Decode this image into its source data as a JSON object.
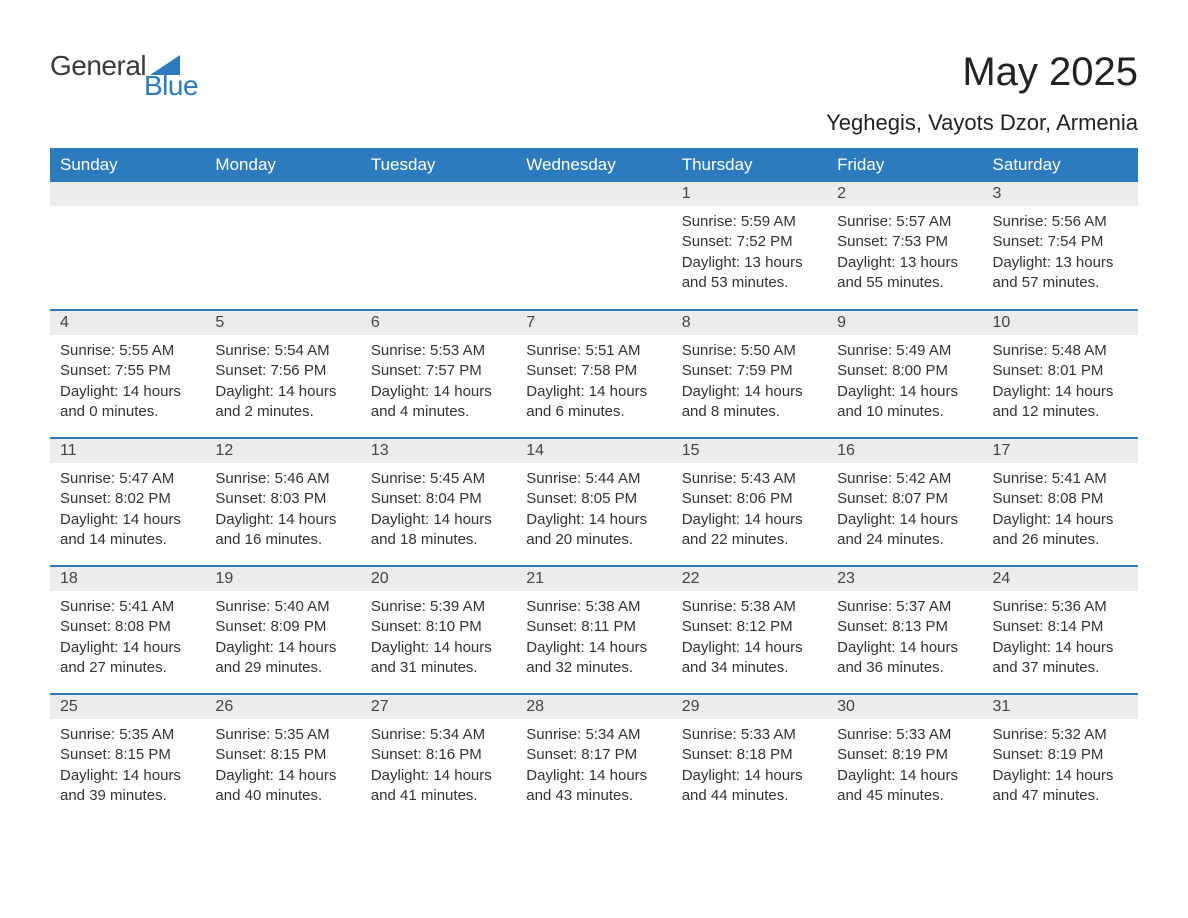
{
  "logo": {
    "text1": "General",
    "text2": "Blue"
  },
  "title": "May 2025",
  "location": "Yeghegis, Vayots Dzor, Armenia",
  "colors": {
    "header_bg": "#2d7bbf",
    "header_text": "#ffffff",
    "daynum_bg": "#ececec",
    "separator": "#2d7bbf",
    "body_text": "#333333",
    "logo_blue": "#2d7bbf",
    "logo_gray": "#3a3a3a"
  },
  "day_headers": [
    "Sunday",
    "Monday",
    "Tuesday",
    "Wednesday",
    "Thursday",
    "Friday",
    "Saturday"
  ],
  "weeks": [
    [
      {
        "day": "",
        "sunrise": "",
        "sunset": "",
        "daylight": ""
      },
      {
        "day": "",
        "sunrise": "",
        "sunset": "",
        "daylight": ""
      },
      {
        "day": "",
        "sunrise": "",
        "sunset": "",
        "daylight": ""
      },
      {
        "day": "",
        "sunrise": "",
        "sunset": "",
        "daylight": ""
      },
      {
        "day": "1",
        "sunrise": "Sunrise: 5:59 AM",
        "sunset": "Sunset: 7:52 PM",
        "daylight": "Daylight: 13 hours and 53 minutes."
      },
      {
        "day": "2",
        "sunrise": "Sunrise: 5:57 AM",
        "sunset": "Sunset: 7:53 PM",
        "daylight": "Daylight: 13 hours and 55 minutes."
      },
      {
        "day": "3",
        "sunrise": "Sunrise: 5:56 AM",
        "sunset": "Sunset: 7:54 PM",
        "daylight": "Daylight: 13 hours and 57 minutes."
      }
    ],
    [
      {
        "day": "4",
        "sunrise": "Sunrise: 5:55 AM",
        "sunset": "Sunset: 7:55 PM",
        "daylight": "Daylight: 14 hours and 0 minutes."
      },
      {
        "day": "5",
        "sunrise": "Sunrise: 5:54 AM",
        "sunset": "Sunset: 7:56 PM",
        "daylight": "Daylight: 14 hours and 2 minutes."
      },
      {
        "day": "6",
        "sunrise": "Sunrise: 5:53 AM",
        "sunset": "Sunset: 7:57 PM",
        "daylight": "Daylight: 14 hours and 4 minutes."
      },
      {
        "day": "7",
        "sunrise": "Sunrise: 5:51 AM",
        "sunset": "Sunset: 7:58 PM",
        "daylight": "Daylight: 14 hours and 6 minutes."
      },
      {
        "day": "8",
        "sunrise": "Sunrise: 5:50 AM",
        "sunset": "Sunset: 7:59 PM",
        "daylight": "Daylight: 14 hours and 8 minutes."
      },
      {
        "day": "9",
        "sunrise": "Sunrise: 5:49 AM",
        "sunset": "Sunset: 8:00 PM",
        "daylight": "Daylight: 14 hours and 10 minutes."
      },
      {
        "day": "10",
        "sunrise": "Sunrise: 5:48 AM",
        "sunset": "Sunset: 8:01 PM",
        "daylight": "Daylight: 14 hours and 12 minutes."
      }
    ],
    [
      {
        "day": "11",
        "sunrise": "Sunrise: 5:47 AM",
        "sunset": "Sunset: 8:02 PM",
        "daylight": "Daylight: 14 hours and 14 minutes."
      },
      {
        "day": "12",
        "sunrise": "Sunrise: 5:46 AM",
        "sunset": "Sunset: 8:03 PM",
        "daylight": "Daylight: 14 hours and 16 minutes."
      },
      {
        "day": "13",
        "sunrise": "Sunrise: 5:45 AM",
        "sunset": "Sunset: 8:04 PM",
        "daylight": "Daylight: 14 hours and 18 minutes."
      },
      {
        "day": "14",
        "sunrise": "Sunrise: 5:44 AM",
        "sunset": "Sunset: 8:05 PM",
        "daylight": "Daylight: 14 hours and 20 minutes."
      },
      {
        "day": "15",
        "sunrise": "Sunrise: 5:43 AM",
        "sunset": "Sunset: 8:06 PM",
        "daylight": "Daylight: 14 hours and 22 minutes."
      },
      {
        "day": "16",
        "sunrise": "Sunrise: 5:42 AM",
        "sunset": "Sunset: 8:07 PM",
        "daylight": "Daylight: 14 hours and 24 minutes."
      },
      {
        "day": "17",
        "sunrise": "Sunrise: 5:41 AM",
        "sunset": "Sunset: 8:08 PM",
        "daylight": "Daylight: 14 hours and 26 minutes."
      }
    ],
    [
      {
        "day": "18",
        "sunrise": "Sunrise: 5:41 AM",
        "sunset": "Sunset: 8:08 PM",
        "daylight": "Daylight: 14 hours and 27 minutes."
      },
      {
        "day": "19",
        "sunrise": "Sunrise: 5:40 AM",
        "sunset": "Sunset: 8:09 PM",
        "daylight": "Daylight: 14 hours and 29 minutes."
      },
      {
        "day": "20",
        "sunrise": "Sunrise: 5:39 AM",
        "sunset": "Sunset: 8:10 PM",
        "daylight": "Daylight: 14 hours and 31 minutes."
      },
      {
        "day": "21",
        "sunrise": "Sunrise: 5:38 AM",
        "sunset": "Sunset: 8:11 PM",
        "daylight": "Daylight: 14 hours and 32 minutes."
      },
      {
        "day": "22",
        "sunrise": "Sunrise: 5:38 AM",
        "sunset": "Sunset: 8:12 PM",
        "daylight": "Daylight: 14 hours and 34 minutes."
      },
      {
        "day": "23",
        "sunrise": "Sunrise: 5:37 AM",
        "sunset": "Sunset: 8:13 PM",
        "daylight": "Daylight: 14 hours and 36 minutes."
      },
      {
        "day": "24",
        "sunrise": "Sunrise: 5:36 AM",
        "sunset": "Sunset: 8:14 PM",
        "daylight": "Daylight: 14 hours and 37 minutes."
      }
    ],
    [
      {
        "day": "25",
        "sunrise": "Sunrise: 5:35 AM",
        "sunset": "Sunset: 8:15 PM",
        "daylight": "Daylight: 14 hours and 39 minutes."
      },
      {
        "day": "26",
        "sunrise": "Sunrise: 5:35 AM",
        "sunset": "Sunset: 8:15 PM",
        "daylight": "Daylight: 14 hours and 40 minutes."
      },
      {
        "day": "27",
        "sunrise": "Sunrise: 5:34 AM",
        "sunset": "Sunset: 8:16 PM",
        "daylight": "Daylight: 14 hours and 41 minutes."
      },
      {
        "day": "28",
        "sunrise": "Sunrise: 5:34 AM",
        "sunset": "Sunset: 8:17 PM",
        "daylight": "Daylight: 14 hours and 43 minutes."
      },
      {
        "day": "29",
        "sunrise": "Sunrise: 5:33 AM",
        "sunset": "Sunset: 8:18 PM",
        "daylight": "Daylight: 14 hours and 44 minutes."
      },
      {
        "day": "30",
        "sunrise": "Sunrise: 5:33 AM",
        "sunset": "Sunset: 8:19 PM",
        "daylight": "Daylight: 14 hours and 45 minutes."
      },
      {
        "day": "31",
        "sunrise": "Sunrise: 5:32 AM",
        "sunset": "Sunset: 8:19 PM",
        "daylight": "Daylight: 14 hours and 47 minutes."
      }
    ]
  ]
}
